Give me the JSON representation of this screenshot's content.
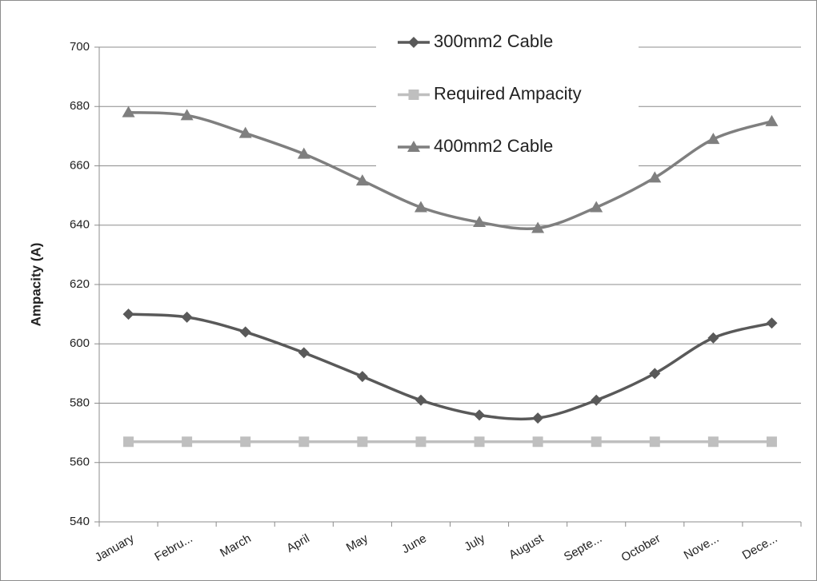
{
  "chart_data": {
    "type": "line",
    "smooth": true,
    "y_label": "Ampacity (A)",
    "categories": [
      "January",
      "Febru...",
      "March",
      "April",
      "May",
      "June",
      "July",
      "August",
      "Septe...",
      "October",
      "Nove...",
      "Dece..."
    ],
    "series": [
      {
        "name": "300mm2 Cable",
        "color": "#595959",
        "marker": "diamond",
        "values": [
          610,
          609,
          604,
          597,
          589,
          581,
          576,
          575,
          581,
          590,
          602,
          607
        ]
      },
      {
        "name": "Required Ampacity",
        "color": "#bfbfbf",
        "marker": "square",
        "values": [
          567,
          567,
          567,
          567,
          567,
          567,
          567,
          567,
          567,
          567,
          567,
          567
        ]
      },
      {
        "name": "400mm2 Cable",
        "color": "#7f7f7f",
        "marker": "triangle",
        "values": [
          678,
          677,
          671,
          664,
          655,
          646,
          641,
          639,
          646,
          656,
          669,
          675
        ]
      }
    ],
    "ylim": [
      540,
      700
    ],
    "yticks": [
      540,
      560,
      580,
      600,
      620,
      640,
      660,
      680,
      700
    ],
    "grid": true,
    "legend": "top"
  }
}
